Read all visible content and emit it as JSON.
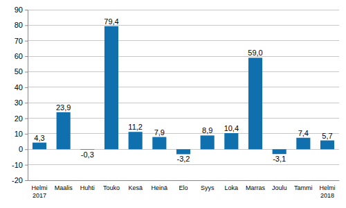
{
  "chart_data": {
    "type": "bar",
    "categories": [
      "Helmi 2017",
      "Maalis",
      "Huhti",
      "Touko",
      "Kesä",
      "Heinä",
      "Elo",
      "Syys",
      "Loka",
      "Marras",
      "Joulu",
      "Tammi",
      "Helmi 2018"
    ],
    "values": [
      4.3,
      23.9,
      -0.3,
      79.4,
      11.2,
      7.9,
      -3.2,
      8.9,
      10.4,
      59.0,
      -3.1,
      7.4,
      5.7
    ],
    "value_labels": [
      "4,3",
      "23,9",
      "-0,3",
      "79,4",
      "11,2",
      "7,9",
      "-3,2",
      "8,9",
      "10,4",
      "59,0",
      "-3,1",
      "7,4",
      "5,7"
    ],
    "data_labels": true,
    "color": "#0f70ad",
    "ylim": [
      -20,
      90
    ],
    "yticks": [
      -20,
      -10,
      0,
      10,
      20,
      30,
      40,
      50,
      60,
      70,
      80,
      90
    ],
    "grid": true
  }
}
